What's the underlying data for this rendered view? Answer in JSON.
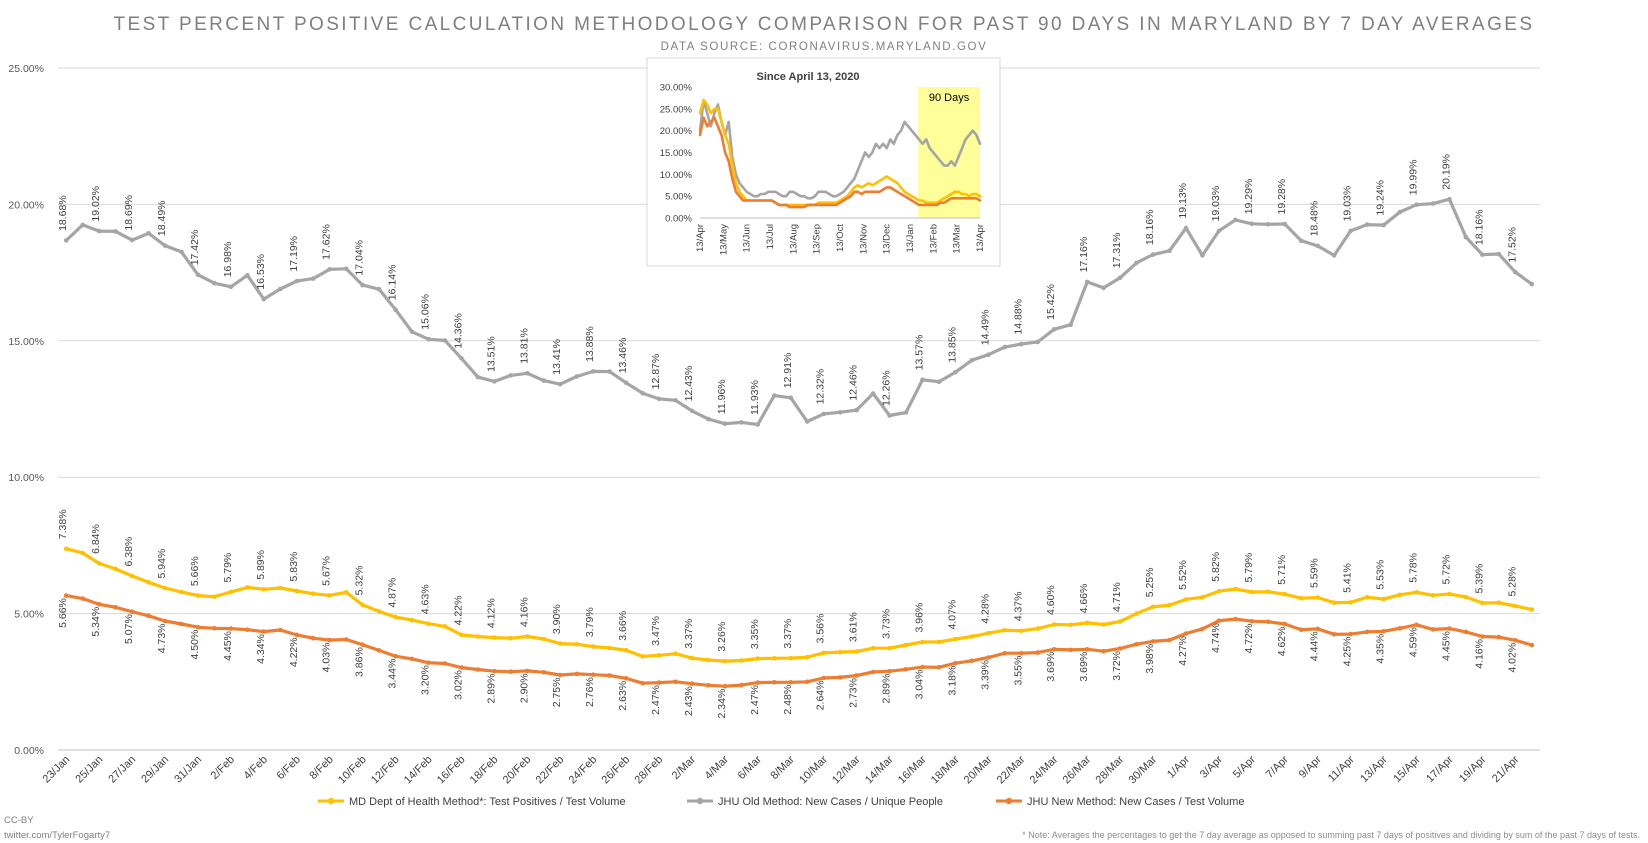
{
  "title": "TEST PERCENT POSITIVE CALCULATION METHODOLOGY COMPARISON FOR PAST 90 DAYS IN MARYLAND BY 7 DAY AVERAGES",
  "subtitle": "DATA SOURCE: CORONAVIRUS.MARYLAND.GOV",
  "credit_line1": "CC-BY",
  "credit_line2": "twitter.com/TylerFogarty7",
  "footnote": "* Note: Averages the percentages to get the 7 day average as opposed to summing past 7 days of positives and dividing by sum of the past 7 days of tests.",
  "colors": {
    "md": "#ffc000",
    "jhu_old": "#a5a5a5",
    "jhu_new": "#ed7d31",
    "grid": "#d9d9d9",
    "highlight": "#ffff99"
  },
  "chart_data": [
    {
      "type": "line",
      "ylim": [
        0,
        25
      ],
      "y_format": "percent_2dp",
      "y_ticks": [
        "0.00%",
        "5.00%",
        "10.00%",
        "15.00%",
        "20.00%",
        "25.00%"
      ],
      "x_labels": [
        "23/Jan",
        "25/Jan",
        "27/Jan",
        "29/Jan",
        "31/Jan",
        "2/Feb",
        "4/Feb",
        "6/Feb",
        "8/Feb",
        "10/Feb",
        "12/Feb",
        "14/Feb",
        "16/Feb",
        "18/Feb",
        "20/Feb",
        "22/Feb",
        "24/Feb",
        "26/Feb",
        "28/Feb",
        "2/Mar",
        "4/Mar",
        "6/Mar",
        "8/Mar",
        "10/Mar",
        "12/Mar",
        "14/Mar",
        "16/Mar",
        "18/Mar",
        "20/Mar",
        "22/Mar",
        "24/Mar",
        "26/Mar",
        "28/Mar",
        "30/Mar",
        "1/Apr",
        "3/Apr",
        "5/Apr",
        "7/Apr",
        "9/Apr",
        "11/Apr",
        "13/Apr",
        "15/Apr",
        "17/Apr",
        "19/Apr",
        "21/Apr"
      ],
      "grid": "horizontal",
      "legend_position": "bottom",
      "series": [
        {
          "name": "MD Dept of Health Method*: Test Positives / Test Volume",
          "color": "#ffc000",
          "label_position": "above",
          "values": [
            7.38,
            7.22,
            6.84,
            6.64,
            6.38,
            6.15,
            5.94,
            5.79,
            5.66,
            5.62,
            5.79,
            5.96,
            5.89,
            5.94,
            5.83,
            5.73,
            5.67,
            5.78,
            5.32,
            5.08,
            4.87,
            4.76,
            4.63,
            4.53,
            4.22,
            4.16,
            4.12,
            4.1,
            4.16,
            4.07,
            3.9,
            3.88,
            3.79,
            3.74,
            3.66,
            3.43,
            3.47,
            3.53,
            3.37,
            3.3,
            3.26,
            3.28,
            3.35,
            3.36,
            3.37,
            3.4,
            3.56,
            3.59,
            3.61,
            3.73,
            3.73,
            3.85,
            3.96,
            3.96,
            4.07,
            4.16,
            4.28,
            4.39,
            4.37,
            4.45,
            4.6,
            4.59,
            4.66,
            4.6,
            4.71,
            5.0,
            5.25,
            5.31,
            5.52,
            5.6,
            5.82,
            5.9,
            5.79,
            5.8,
            5.71,
            5.56,
            5.59,
            5.4,
            5.41,
            5.6,
            5.53,
            5.69,
            5.78,
            5.67,
            5.72,
            5.61,
            5.39,
            5.4,
            5.28,
            5.15
          ]
        },
        {
          "name": "JHU Old Method: New Cases / Unique People",
          "color": "#a5a5a5",
          "label_position": "above",
          "values": [
            18.68,
            19.25,
            19.02,
            19.01,
            18.69,
            18.94,
            18.49,
            18.26,
            17.42,
            17.11,
            16.98,
            17.4,
            16.53,
            16.9,
            17.19,
            17.28,
            17.62,
            17.64,
            17.04,
            16.89,
            16.14,
            15.33,
            15.06,
            15.01,
            14.36,
            13.67,
            13.51,
            13.73,
            13.81,
            13.54,
            13.41,
            13.69,
            13.88,
            13.87,
            13.46,
            13.08,
            12.87,
            12.82,
            12.43,
            12.13,
            11.96,
            12.01,
            11.93,
            12.99,
            12.91,
            12.04,
            12.32,
            12.38,
            12.46,
            13.07,
            12.26,
            12.37,
            13.57,
            13.5,
            13.85,
            14.29,
            14.49,
            14.77,
            14.88,
            14.96,
            15.42,
            15.59,
            17.16,
            16.94,
            17.31,
            17.86,
            18.16,
            18.3,
            19.13,
            18.13,
            19.03,
            19.43,
            19.29,
            19.27,
            19.28,
            18.67,
            18.48,
            18.13,
            19.03,
            19.26,
            19.24,
            19.72,
            19.99,
            20.03,
            20.19,
            18.8,
            18.16,
            18.18,
            17.52,
            17.08
          ]
        },
        {
          "name": "JHU New Method: New Cases / Test Volume",
          "color": "#ed7d31",
          "label_position": "below",
          "values": [
            5.66,
            5.55,
            5.34,
            5.23,
            5.07,
            4.92,
            4.73,
            4.62,
            4.5,
            4.46,
            4.45,
            4.41,
            4.34,
            4.4,
            4.22,
            4.1,
            4.03,
            4.05,
            3.86,
            3.65,
            3.44,
            3.34,
            3.2,
            3.17,
            3.02,
            2.95,
            2.89,
            2.87,
            2.9,
            2.85,
            2.75,
            2.79,
            2.76,
            2.73,
            2.63,
            2.45,
            2.47,
            2.5,
            2.43,
            2.37,
            2.34,
            2.38,
            2.47,
            2.48,
            2.48,
            2.5,
            2.64,
            2.66,
            2.73,
            2.86,
            2.89,
            2.96,
            3.04,
            3.03,
            3.18,
            3.27,
            3.39,
            3.55,
            3.55,
            3.57,
            3.69,
            3.67,
            3.69,
            3.62,
            3.72,
            3.88,
            3.98,
            4.03,
            4.27,
            4.44,
            4.74,
            4.8,
            4.72,
            4.7,
            4.62,
            4.41,
            4.44,
            4.24,
            4.25,
            4.33,
            4.35,
            4.46,
            4.59,
            4.42,
            4.45,
            4.33,
            4.16,
            4.14,
            4.02,
            3.85
          ]
        }
      ]
    },
    {
      "type": "line",
      "title": "Since April 13, 2020",
      "ylim": [
        0,
        30
      ],
      "y_ticks": [
        "0.00%",
        "5.00%",
        "10.00%",
        "15.00%",
        "20.00%",
        "25.00%",
        "30.00%"
      ],
      "x_labels": [
        "13/Apr",
        "13/May",
        "13/Jun",
        "13/Jul",
        "13/Aug",
        "13/Sep",
        "13/Oct",
        "13/Nov",
        "13/Dec",
        "13/Jan",
        "13/Feb",
        "13/Mar",
        "13/Apr"
      ],
      "annotation": "90 Days",
      "highlight_range_index": [
        9.35,
        12.2
      ],
      "series": [
        {
          "color": "#a5a5a5",
          "values": [
            20,
            27,
            24,
            21,
            24,
            26,
            22,
            19,
            22,
            14,
            10,
            8,
            7,
            6,
            5.5,
            5,
            5,
            5.5,
            5.5,
            6,
            6,
            6,
            5.5,
            5,
            5,
            6,
            6,
            5.5,
            5,
            5,
            4.5,
            4.5,
            5,
            6,
            6,
            6,
            5.5,
            5,
            5,
            5.5,
            6,
            7,
            8,
            9,
            11,
            13,
            15,
            14,
            15,
            17,
            16,
            17,
            16,
            18,
            17,
            19,
            20,
            22,
            21,
            20,
            19,
            18,
            17,
            18,
            16,
            15,
            14,
            13,
            12,
            12,
            13,
            12,
            14,
            16,
            18,
            19,
            20,
            19,
            17
          ]
        },
        {
          "color": "#ffc000",
          "values": [
            24,
            27,
            26,
            24,
            25,
            25,
            22,
            19,
            17,
            12,
            8,
            6,
            5,
            4,
            4,
            4,
            4,
            4,
            4,
            4,
            4,
            3.5,
            3,
            3,
            3,
            3,
            3,
            3,
            3,
            3,
            3,
            3,
            3,
            3.5,
            3.5,
            3.5,
            3.5,
            3.5,
            3.5,
            4,
            4.5,
            5,
            6,
            7,
            7.5,
            7,
            7.5,
            8,
            7.5,
            8,
            8.5,
            9,
            9.5,
            9,
            8.5,
            8,
            7,
            6,
            5.5,
            5,
            4.5,
            4,
            4,
            3.5,
            3.5,
            3.5,
            3.5,
            4,
            4.5,
            5,
            5.5,
            6,
            6,
            5.5,
            5.5,
            5,
            5.5,
            5.5,
            5
          ]
        },
        {
          "color": "#ed7d31",
          "values": [
            19,
            23,
            21,
            22,
            23,
            21,
            19,
            15,
            13,
            9,
            6,
            5,
            4,
            4,
            4,
            4,
            4,
            4,
            4,
            4,
            4,
            3.5,
            3,
            3,
            3,
            2.5,
            2.5,
            2.5,
            2.5,
            2.5,
            3,
            3,
            3,
            3,
            3,
            3,
            3,
            3,
            3,
            3.5,
            4,
            4.5,
            5,
            6,
            6,
            5.5,
            6,
            6,
            6,
            6,
            6,
            6.5,
            7,
            7,
            6.5,
            6,
            5.5,
            5,
            4.5,
            4,
            3.5,
            3,
            3,
            3,
            3,
            3,
            3,
            3.5,
            3.5,
            4,
            4.5,
            4.5,
            4.5,
            4.5,
            4.5,
            4.5,
            4.5,
            4.5,
            4
          ]
        }
      ]
    }
  ]
}
